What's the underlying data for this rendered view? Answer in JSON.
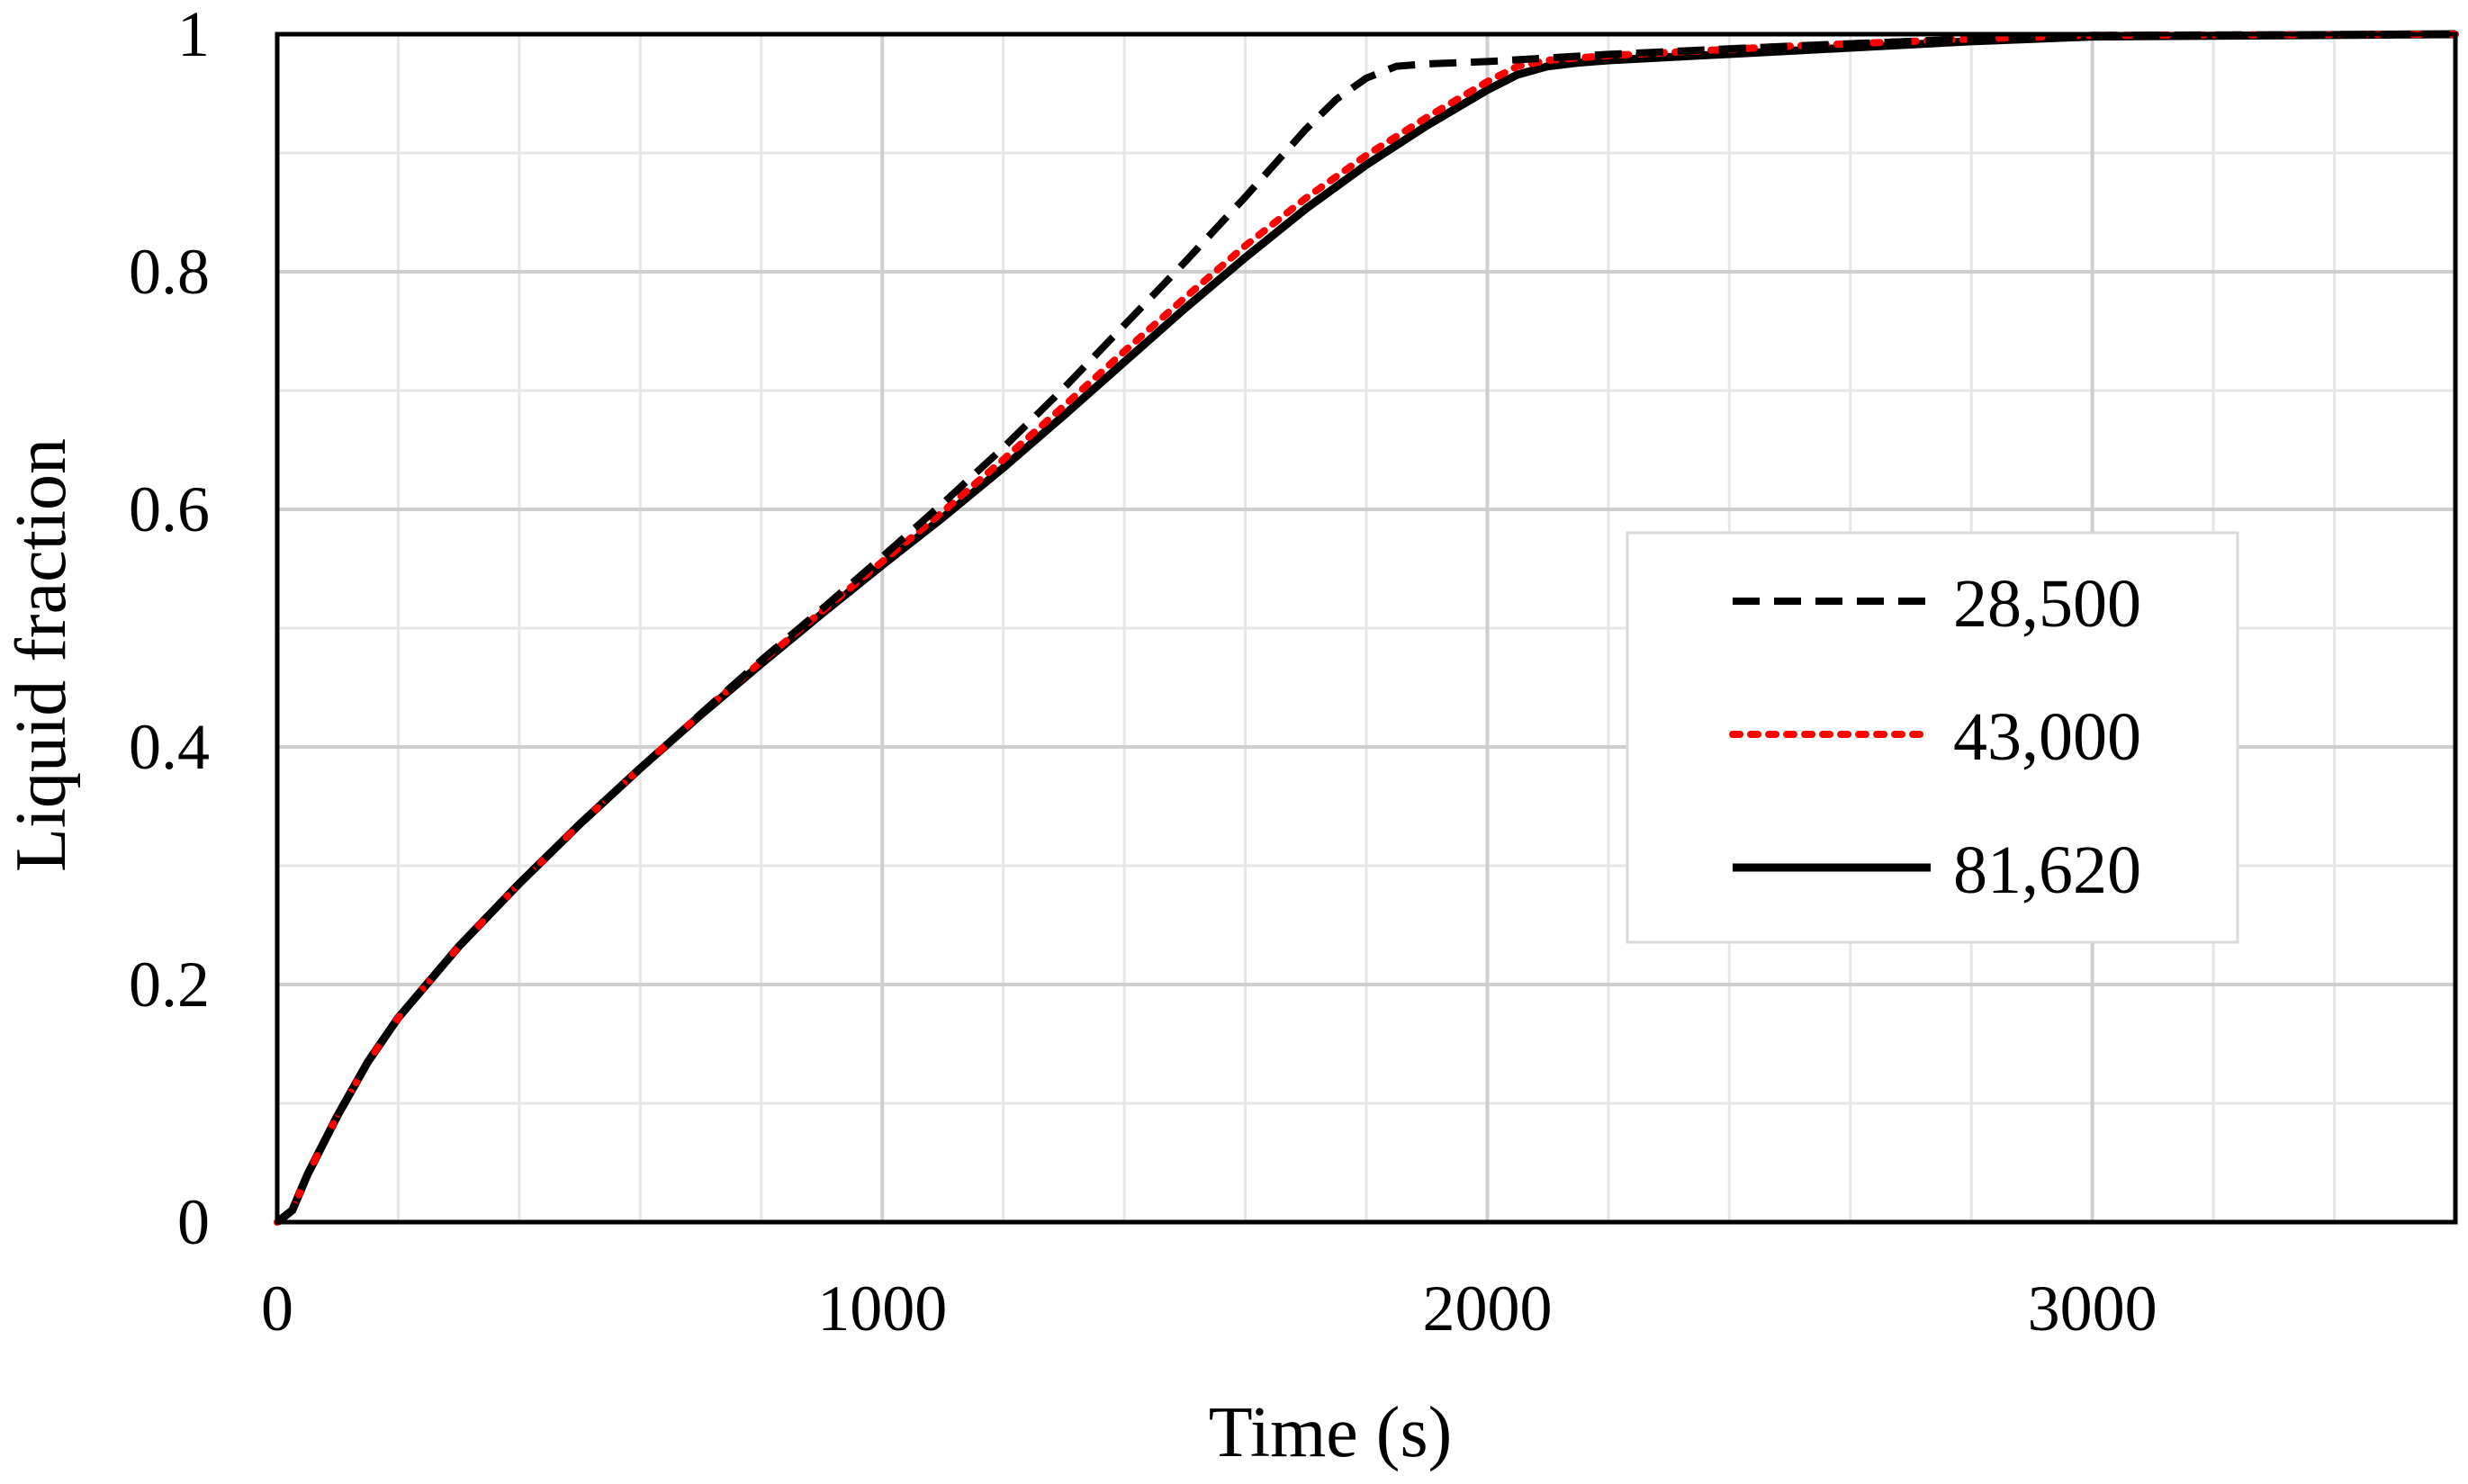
{
  "chart_data": {
    "type": "line",
    "title": "",
    "xlabel": "Time (s)",
    "ylabel": "Liquid fraction",
    "xlim": [
      0,
      3600
    ],
    "ylim": [
      0,
      1
    ],
    "x_ticks": [
      0,
      1000,
      2000,
      3000
    ],
    "x_tick_labels": [
      "0",
      "1000",
      "2000",
      "3000"
    ],
    "y_ticks": [
      0,
      0.2,
      0.4,
      0.6,
      0.8,
      1
    ],
    "y_tick_labels": [
      "0",
      "0.2",
      "0.4",
      "0.6",
      "0.8",
      "1"
    ],
    "x_minor_step": 200,
    "y_minor_step": 0.1,
    "grid": true,
    "legend_position": "right",
    "series": [
      {
        "name": "28,500",
        "style": "dashed",
        "color": "#000000",
        "x": [
          0,
          25,
          50,
          100,
          150,
          200,
          300,
          400,
          500,
          600,
          700,
          800,
          900,
          1000,
          1100,
          1200,
          1300,
          1400,
          1500,
          1600,
          1700,
          1750,
          1800,
          1850,
          1900,
          1950,
          2000,
          2200,
          2500,
          2800,
          3000,
          3600
        ],
        "y": [
          0,
          0.01,
          0.04,
          0.09,
          0.135,
          0.172,
          0.232,
          0.285,
          0.335,
          0.382,
          0.428,
          0.473,
          0.516,
          0.56,
          0.605,
          0.652,
          0.702,
          0.755,
          0.808,
          0.863,
          0.92,
          0.945,
          0.963,
          0.973,
          0.975,
          0.976,
          0.977,
          0.983,
          0.99,
          0.996,
          0.999,
          1.0
        ]
      },
      {
        "name": "43,000",
        "style": "dotted",
        "color": "#ff0000",
        "x": [
          0,
          25,
          50,
          100,
          150,
          200,
          300,
          400,
          500,
          600,
          700,
          800,
          900,
          1000,
          1100,
          1200,
          1300,
          1400,
          1500,
          1600,
          1700,
          1800,
          1900,
          1950,
          2000,
          2050,
          2100,
          2200,
          2500,
          2800,
          3000,
          3600
        ],
        "y": [
          0,
          0.01,
          0.04,
          0.09,
          0.135,
          0.172,
          0.232,
          0.285,
          0.335,
          0.382,
          0.428,
          0.472,
          0.514,
          0.556,
          0.598,
          0.642,
          0.687,
          0.733,
          0.778,
          0.822,
          0.862,
          0.898,
          0.93,
          0.945,
          0.96,
          0.973,
          0.978,
          0.982,
          0.99,
          0.996,
          0.999,
          1.0
        ]
      },
      {
        "name": "81,620",
        "style": "solid",
        "color": "#000000",
        "x": [
          0,
          25,
          50,
          100,
          150,
          200,
          300,
          400,
          500,
          600,
          700,
          800,
          900,
          1000,
          1100,
          1200,
          1300,
          1400,
          1500,
          1600,
          1700,
          1800,
          1900,
          2000,
          2050,
          2100,
          2150,
          2200,
          2500,
          2800,
          3000,
          3600
        ],
        "y": [
          0,
          0.01,
          0.04,
          0.09,
          0.135,
          0.172,
          0.232,
          0.285,
          0.335,
          0.382,
          0.427,
          0.47,
          0.512,
          0.553,
          0.593,
          0.635,
          0.679,
          0.724,
          0.769,
          0.812,
          0.853,
          0.89,
          0.923,
          0.953,
          0.966,
          0.973,
          0.976,
          0.978,
          0.986,
          0.994,
          0.998,
          1.0
        ]
      }
    ]
  }
}
